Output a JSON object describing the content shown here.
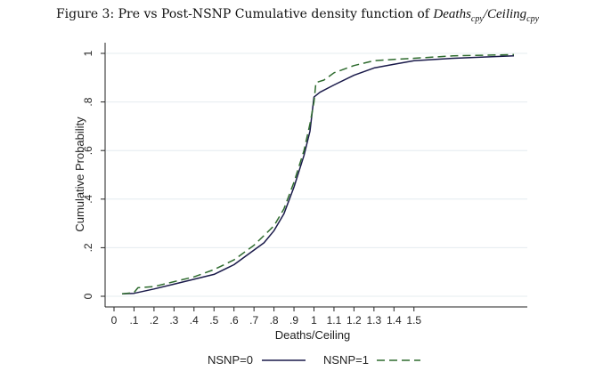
{
  "figure": {
    "title_prefix": "Figure 3: Pre vs Post-NSNP Cumulative density function of ",
    "title_math_main_1": "Deaths",
    "title_math_sub_1": "cpy",
    "title_math_sep": "/",
    "title_math_main_2": "Ceiling",
    "title_math_sub_2": "cpy"
  },
  "chart_data": {
    "type": "line",
    "title": "Figure 3: Pre vs Post-NSNP Cumulative density function of Deaths_cpy/Ceiling_cpy",
    "xlabel": "Deaths/Ceiling",
    "ylabel": "Cumulative Probability",
    "xlim": [
      0,
      2.05
    ],
    "ylim": [
      0,
      1
    ],
    "grid": "horizontal",
    "legend_position": "bottom",
    "x_ticks": [
      {
        "value": 0,
        "label": "0"
      },
      {
        "value": 0.1,
        "label": ".1"
      },
      {
        "value": 0.2,
        "label": ".2"
      },
      {
        "value": 0.3,
        "label": ".3"
      },
      {
        "value": 0.4,
        "label": ".4"
      },
      {
        "value": 0.5,
        "label": ".5"
      },
      {
        "value": 0.6,
        "label": ".6"
      },
      {
        "value": 0.7,
        "label": ".7"
      },
      {
        "value": 0.8,
        "label": ".8"
      },
      {
        "value": 0.9,
        "label": ".9"
      },
      {
        "value": 1.0,
        "label": "1"
      },
      {
        "value": 1.1,
        "label": "1.1"
      },
      {
        "value": 1.2,
        "label": "1.2"
      },
      {
        "value": 1.3,
        "label": "1.3"
      },
      {
        "value": 1.4,
        "label": "1.4"
      },
      {
        "value": 1.5,
        "label": "1.5"
      }
    ],
    "y_ticks": [
      {
        "value": 0,
        "label": "0"
      },
      {
        "value": 0.2,
        "label": ".2"
      },
      {
        "value": 0.4,
        "label": ".4"
      },
      {
        "value": 0.6,
        "label": ".6"
      },
      {
        "value": 0.8,
        "label": ".8"
      },
      {
        "value": 1.0,
        "label": "1"
      }
    ],
    "series": [
      {
        "name": "NSNP=0",
        "color": "#1a1a4a",
        "dash": "solid",
        "x": [
          0.04,
          0.1,
          0.2,
          0.3,
          0.4,
          0.5,
          0.6,
          0.7,
          0.75,
          0.8,
          0.85,
          0.9,
          0.95,
          0.98,
          1.0,
          1.03,
          1.1,
          1.2,
          1.3,
          1.4,
          1.5,
          1.7,
          2.0
        ],
        "y": [
          0.01,
          0.012,
          0.03,
          0.05,
          0.07,
          0.09,
          0.13,
          0.19,
          0.22,
          0.27,
          0.34,
          0.45,
          0.58,
          0.68,
          0.82,
          0.84,
          0.87,
          0.91,
          0.94,
          0.955,
          0.97,
          0.98,
          0.99
        ]
      },
      {
        "name": "NSNP=1",
        "color": "#2e6b2e",
        "dash": "dashed",
        "x": [
          0.04,
          0.1,
          0.12,
          0.2,
          0.3,
          0.4,
          0.5,
          0.6,
          0.7,
          0.8,
          0.85,
          0.9,
          0.95,
          0.98,
          1.0,
          1.01,
          1.05,
          1.1,
          1.2,
          1.3,
          1.4,
          1.5,
          1.7,
          2.0
        ],
        "y": [
          0.01,
          0.015,
          0.035,
          0.04,
          0.06,
          0.08,
          0.11,
          0.15,
          0.21,
          0.29,
          0.36,
          0.47,
          0.6,
          0.71,
          0.8,
          0.88,
          0.89,
          0.92,
          0.95,
          0.97,
          0.975,
          0.98,
          0.99,
          0.995
        ]
      }
    ]
  }
}
